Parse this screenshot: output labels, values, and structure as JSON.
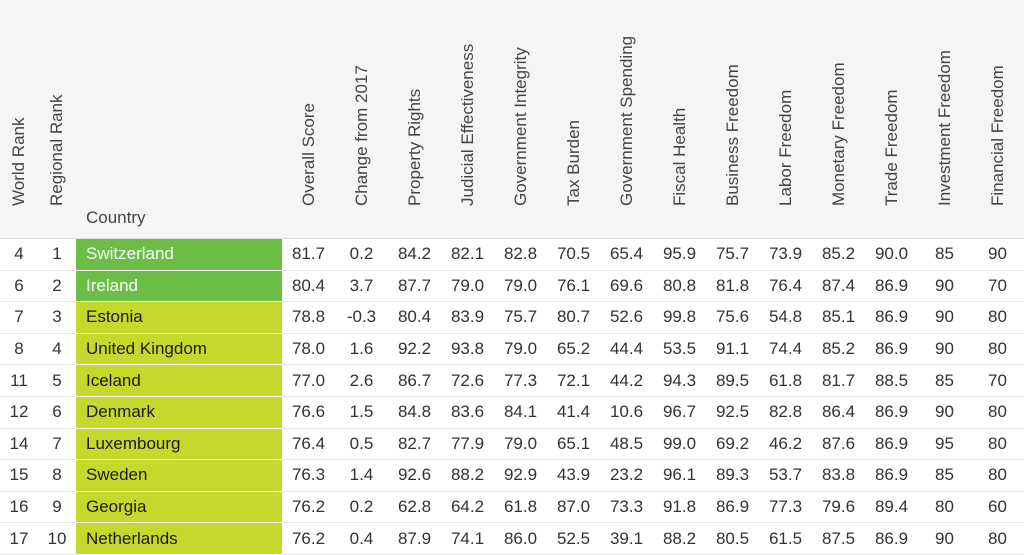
{
  "headers": {
    "world_rank": "World Rank",
    "regional_rank": "Regional Rank",
    "country": "Country",
    "overall_score": "Overall Score",
    "change": "Change from 2017",
    "property_rights": "Property Rights",
    "judicial": "Judicial Effectiveness",
    "integrity": "Government Integrity",
    "tax": "Tax Burden",
    "spending": "Government Spending",
    "fiscal": "Fiscal Health",
    "business": "Business Freedom",
    "labor": "Labor Freedom",
    "monetary": "Monetary Freedom",
    "trade": "Trade Freedom",
    "investment": "Investment Freedom",
    "financial": "Financial Freedom"
  },
  "colors": {
    "free": "#6cbd45",
    "mostly_free": "#c5d92d",
    "header_bg": "#f5f5f5"
  },
  "rows": [
    {
      "world_rank": "4",
      "regional_rank": "1",
      "country": "Switzerland",
      "category": "free",
      "overall_score": "81.7",
      "change": "0.2",
      "property_rights": "84.2",
      "judicial": "82.1",
      "integrity": "82.8",
      "tax": "70.5",
      "spending": "65.4",
      "fiscal": "95.9",
      "business": "75.7",
      "labor": "73.9",
      "monetary": "85.2",
      "trade": "90.0",
      "investment": "85",
      "financial": "90"
    },
    {
      "world_rank": "6",
      "regional_rank": "2",
      "country": "Ireland",
      "category": "free",
      "overall_score": "80.4",
      "change": "3.7",
      "property_rights": "87.7",
      "judicial": "79.0",
      "integrity": "79.0",
      "tax": "76.1",
      "spending": "69.6",
      "fiscal": "80.8",
      "business": "81.8",
      "labor": "76.4",
      "monetary": "87.4",
      "trade": "86.9",
      "investment": "90",
      "financial": "70"
    },
    {
      "world_rank": "7",
      "regional_rank": "3",
      "country": "Estonia",
      "category": "mostly",
      "overall_score": "78.8",
      "change": "-0.3",
      "property_rights": "80.4",
      "judicial": "83.9",
      "integrity": "75.7",
      "tax": "80.7",
      "spending": "52.6",
      "fiscal": "99.8",
      "business": "75.6",
      "labor": "54.8",
      "monetary": "85.1",
      "trade": "86.9",
      "investment": "90",
      "financial": "80"
    },
    {
      "world_rank": "8",
      "regional_rank": "4",
      "country": "United Kingdom",
      "category": "mostly",
      "overall_score": "78.0",
      "change": "1.6",
      "property_rights": "92.2",
      "judicial": "93.8",
      "integrity": "79.0",
      "tax": "65.2",
      "spending": "44.4",
      "fiscal": "53.5",
      "business": "91.1",
      "labor": "74.4",
      "monetary": "85.2",
      "trade": "86.9",
      "investment": "90",
      "financial": "80"
    },
    {
      "world_rank": "11",
      "regional_rank": "5",
      "country": "Iceland",
      "category": "mostly",
      "overall_score": "77.0",
      "change": "2.6",
      "property_rights": "86.7",
      "judicial": "72.6",
      "integrity": "77.3",
      "tax": "72.1",
      "spending": "44.2",
      "fiscal": "94.3",
      "business": "89.5",
      "labor": "61.8",
      "monetary": "81.7",
      "trade": "88.5",
      "investment": "85",
      "financial": "70"
    },
    {
      "world_rank": "12",
      "regional_rank": "6",
      "country": "Denmark",
      "category": "mostly",
      "overall_score": "76.6",
      "change": "1.5",
      "property_rights": "84.8",
      "judicial": "83.6",
      "integrity": "84.1",
      "tax": "41.4",
      "spending": "10.6",
      "fiscal": "96.7",
      "business": "92.5",
      "labor": "82.8",
      "monetary": "86.4",
      "trade": "86.9",
      "investment": "90",
      "financial": "80"
    },
    {
      "world_rank": "14",
      "regional_rank": "7",
      "country": "Luxembourg",
      "category": "mostly",
      "overall_score": "76.4",
      "change": "0.5",
      "property_rights": "82.7",
      "judicial": "77.9",
      "integrity": "79.0",
      "tax": "65.1",
      "spending": "48.5",
      "fiscal": "99.0",
      "business": "69.2",
      "labor": "46.2",
      "monetary": "87.6",
      "trade": "86.9",
      "investment": "95",
      "financial": "80"
    },
    {
      "world_rank": "15",
      "regional_rank": "8",
      "country": "Sweden",
      "category": "mostly",
      "overall_score": "76.3",
      "change": "1.4",
      "property_rights": "92.6",
      "judicial": "88.2",
      "integrity": "92.9",
      "tax": "43.9",
      "spending": "23.2",
      "fiscal": "96.1",
      "business": "89.3",
      "labor": "53.7",
      "monetary": "83.8",
      "trade": "86.9",
      "investment": "85",
      "financial": "80"
    },
    {
      "world_rank": "16",
      "regional_rank": "9",
      "country": "Georgia",
      "category": "mostly",
      "overall_score": "76.2",
      "change": "0.2",
      "property_rights": "62.8",
      "judicial": "64.2",
      "integrity": "61.8",
      "tax": "87.0",
      "spending": "73.3",
      "fiscal": "91.8",
      "business": "86.9",
      "labor": "77.3",
      "monetary": "79.6",
      "trade": "89.4",
      "investment": "80",
      "financial": "60"
    },
    {
      "world_rank": "17",
      "regional_rank": "10",
      "country": "Netherlands",
      "category": "mostly",
      "overall_score": "76.2",
      "change": "0.4",
      "property_rights": "87.9",
      "judicial": "74.1",
      "integrity": "86.0",
      "tax": "52.5",
      "spending": "39.1",
      "fiscal": "88.2",
      "business": "80.5",
      "labor": "61.5",
      "monetary": "87.5",
      "trade": "86.9",
      "investment": "90",
      "financial": "80"
    }
  ]
}
